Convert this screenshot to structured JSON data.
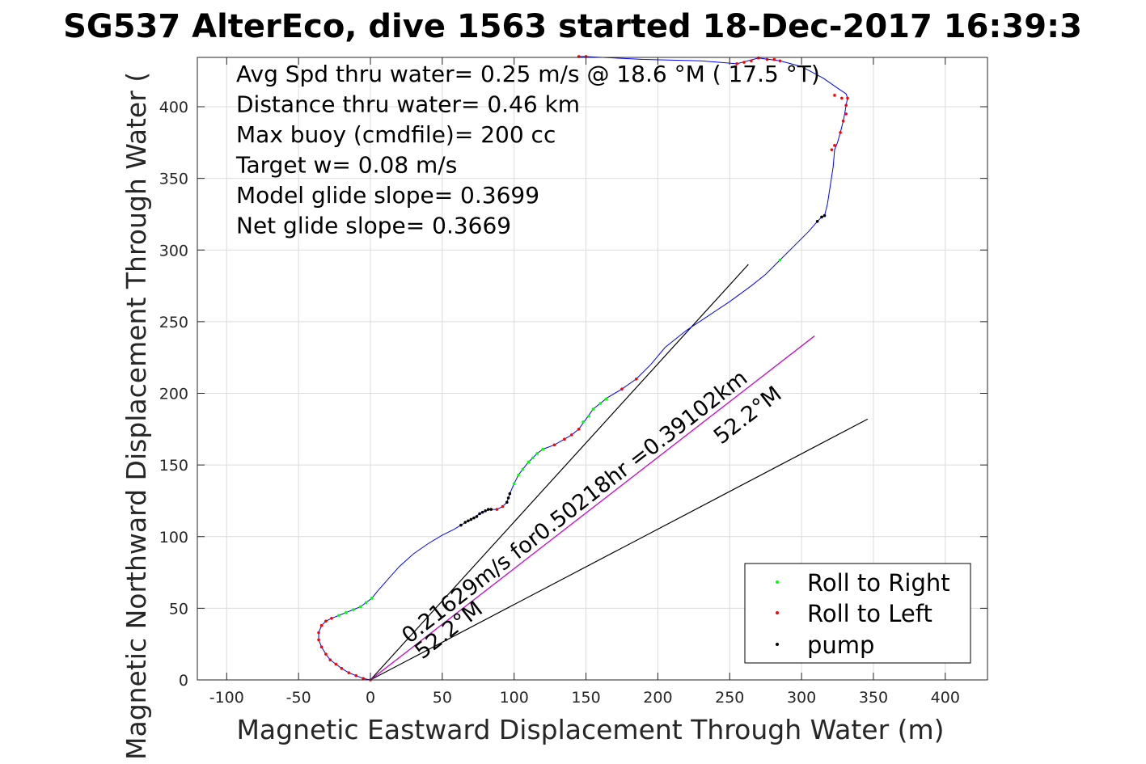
{
  "chart_data": {
    "type": "line",
    "title": "SG537 AlterEco, dive 1563 started 18-Dec-2017 16:39:3",
    "xlabel": "Magnetic Eastward Displacement Through Water (m)",
    "ylabel": "Magnetic Northward Displacement Through Water (",
    "xlim": [
      -120,
      430
    ],
    "ylim": [
      0,
      435
    ],
    "xticks": [
      -100,
      -50,
      0,
      50,
      100,
      150,
      200,
      250,
      300,
      350,
      400
    ],
    "yticks": [
      0,
      50,
      100,
      150,
      200,
      250,
      300,
      350,
      400
    ],
    "grid": true,
    "info_lines": [
      "Avg Spd thru water=  0.25 m/s @  18.6 °M ( 17.5 °T)",
      "Distance thru water=  0.46 km",
      "Max buoy (cmdfile)= 200 cc",
      "Target w= 0.08 m/s",
      "Model glide slope= 0.3699",
      "Net glide slope= 0.3669"
    ],
    "track": {
      "color": "#0000ff",
      "points": [
        [
          0,
          0
        ],
        [
          -5,
          1
        ],
        [
          -10,
          3
        ],
        [
          -15,
          5
        ],
        [
          -20,
          8
        ],
        [
          -24,
          11
        ],
        [
          -28,
          14
        ],
        [
          -31,
          18
        ],
        [
          -34,
          23
        ],
        [
          -36,
          28
        ],
        [
          -36,
          33
        ],
        [
          -34,
          38
        ],
        [
          -31,
          41
        ],
        [
          -27,
          43
        ],
        [
          -22,
          45
        ],
        [
          -17,
          47
        ],
        [
          -12,
          49
        ],
        [
          -7,
          51
        ],
        [
          -3,
          54
        ],
        [
          1,
          57
        ],
        [
          5,
          62
        ],
        [
          12,
          70
        ],
        [
          20,
          79
        ],
        [
          30,
          88
        ],
        [
          40,
          95
        ],
        [
          50,
          101
        ],
        [
          58,
          105
        ],
        [
          63,
          108
        ],
        [
          68,
          111
        ],
        [
          72,
          113
        ],
        [
          76,
          116
        ],
        [
          80,
          118
        ],
        [
          84,
          119
        ],
        [
          88,
          119
        ],
        [
          92,
          121
        ],
        [
          95,
          124
        ],
        [
          96,
          127
        ],
        [
          97,
          130
        ],
        [
          100,
          137
        ],
        [
          103,
          143
        ],
        [
          106,
          147
        ],
        [
          110,
          152
        ],
        [
          113,
          155
        ],
        [
          116,
          158
        ],
        [
          120,
          161
        ],
        [
          128,
          164
        ],
        [
          135,
          168
        ],
        [
          140,
          171
        ],
        [
          145,
          175
        ],
        [
          150,
          182
        ],
        [
          155,
          189
        ],
        [
          160,
          193
        ],
        [
          165,
          197
        ],
        [
          175,
          203
        ],
        [
          185,
          210
        ],
        [
          195,
          220
        ],
        [
          205,
          232
        ],
        [
          220,
          244
        ],
        [
          235,
          254
        ],
        [
          250,
          264
        ],
        [
          265,
          275
        ],
        [
          275,
          283
        ],
        [
          285,
          293
        ],
        [
          295,
          303
        ],
        [
          305,
          313
        ],
        [
          311,
          320
        ],
        [
          314,
          323
        ],
        [
          316,
          324
        ],
        [
          318,
          332
        ],
        [
          320,
          345
        ],
        [
          322,
          358
        ],
        [
          323,
          370
        ],
        [
          325,
          375
        ],
        [
          327,
          382
        ],
        [
          329,
          390
        ],
        [
          330,
          395
        ],
        [
          331,
          401
        ],
        [
          332,
          406
        ],
        [
          331,
          409
        ],
        [
          325,
          413
        ],
        [
          315,
          420
        ],
        [
          300,
          428
        ],
        [
          285,
          432
        ],
        [
          270,
          434
        ],
        [
          255,
          430
        ],
        [
          230,
          432
        ],
        [
          190,
          433
        ],
        [
          150,
          435
        ],
        [
          145,
          435
        ]
      ]
    },
    "markers": {
      "roll_right": {
        "label": "Roll to Right",
        "color": "#00ff00",
        "points": [
          [
            -22,
            45
          ],
          [
            -17,
            47
          ],
          [
            -12,
            49
          ],
          [
            -7,
            51
          ],
          [
            -3,
            54
          ],
          [
            1,
            57
          ],
          [
            100,
            137
          ],
          [
            103,
            143
          ],
          [
            106,
            147
          ],
          [
            110,
            152
          ],
          [
            113,
            155
          ],
          [
            116,
            158
          ],
          [
            120,
            161
          ],
          [
            148,
            180
          ],
          [
            152,
            184
          ],
          [
            155,
            189
          ],
          [
            160,
            193
          ],
          [
            164,
            196
          ],
          [
            285,
            293
          ]
        ]
      },
      "roll_left": {
        "label": "Roll to Left",
        "color": "#ff0000",
        "points": [
          [
            0,
            0
          ],
          [
            -5,
            1
          ],
          [
            -10,
            3
          ],
          [
            -15,
            5
          ],
          [
            -20,
            8
          ],
          [
            -24,
            11
          ],
          [
            -28,
            14
          ],
          [
            -31,
            18
          ],
          [
            -34,
            23
          ],
          [
            -36,
            28
          ],
          [
            -36,
            33
          ],
          [
            -34,
            38
          ],
          [
            -31,
            41
          ],
          [
            -27,
            43
          ],
          [
            88,
            119
          ],
          [
            92,
            121
          ],
          [
            128,
            164
          ],
          [
            135,
            168
          ],
          [
            140,
            171
          ],
          [
            145,
            175
          ],
          [
            175,
            203
          ],
          [
            185,
            210
          ],
          [
            321,
            370
          ],
          [
            323,
            373
          ],
          [
            327,
            382
          ],
          [
            329,
            390
          ],
          [
            331,
            395
          ],
          [
            331,
            401
          ],
          [
            332,
            406
          ],
          [
            145,
            435
          ],
          [
            150,
            435
          ],
          [
            255,
            430
          ],
          [
            260,
            431
          ],
          [
            265,
            432
          ],
          [
            270,
            434
          ],
          [
            276,
            433
          ],
          [
            281,
            433
          ],
          [
            285,
            432
          ],
          [
            323,
            408
          ],
          [
            328,
            406
          ]
        ]
      },
      "pump": {
        "label": "pump",
        "color": "#000000",
        "points": [
          [
            63,
            108
          ],
          [
            66,
            110
          ],
          [
            68,
            111
          ],
          [
            70,
            112
          ],
          [
            72,
            113
          ],
          [
            74,
            114
          ],
          [
            76,
            116
          ],
          [
            78,
            117
          ],
          [
            80,
            118
          ],
          [
            82,
            119
          ],
          [
            84,
            119
          ],
          [
            95,
            124
          ],
          [
            96,
            127
          ],
          [
            97,
            130
          ],
          [
            311,
            320
          ],
          [
            314,
            323
          ],
          [
            316,
            324
          ]
        ]
      }
    },
    "lines": [
      {
        "name": "model",
        "color": "#000000",
        "points": [
          [
            0,
            0
          ],
          [
            263,
            290
          ]
        ]
      },
      {
        "name": "net",
        "color": "#000000",
        "points": [
          [
            0,
            0
          ],
          [
            346,
            182
          ]
        ]
      },
      {
        "name": "current",
        "color": "#000000",
        "points": [
          [
            0,
            0
          ],
          [
            309,
            240
          ]
        ]
      },
      {
        "name": "current-overlay",
        "color": "#ff00ff",
        "points": [
          [
            0,
            0
          ],
          [
            309,
            240
          ]
        ]
      }
    ],
    "annotations": [
      {
        "text": "0.21629m/s for0.50218hr =0.39102km",
        "x": 27,
        "y": 25,
        "angle": -37.8
      },
      {
        "text": "52.2°M",
        "x": 36,
        "y": 14,
        "angle": -37.8
      },
      {
        "text": "52.2°M",
        "x": 244,
        "y": 164,
        "angle": -37.8
      }
    ],
    "legend": {
      "position": "bottom-right",
      "entries": [
        {
          "label": "Roll to Right",
          "color": "#00ff00"
        },
        {
          "label": "Roll to Left",
          "color": "#ff0000"
        },
        {
          "label": "pump",
          "color": "#000000"
        }
      ]
    }
  }
}
